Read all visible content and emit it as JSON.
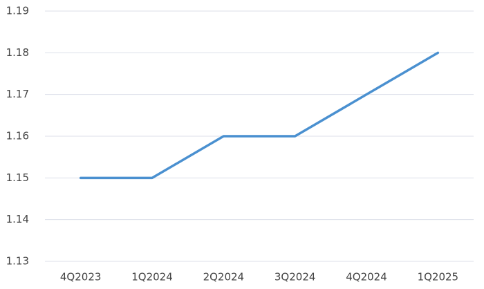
{
  "chart_data": {
    "type": "line",
    "categories": [
      "4Q2023",
      "1Q2024",
      "2Q2024",
      "3Q2024",
      "4Q2024",
      "1Q2025"
    ],
    "series": [
      {
        "color": "#4a90d0",
        "values": [
          1.15,
          1.15,
          1.16,
          1.16,
          1.17,
          1.18
        ]
      }
    ],
    "ylim": [
      1.13,
      1.19
    ],
    "yticks": [
      1.13,
      1.14,
      1.15,
      1.16,
      1.17,
      1.18,
      1.19
    ],
    "grid": true
  }
}
